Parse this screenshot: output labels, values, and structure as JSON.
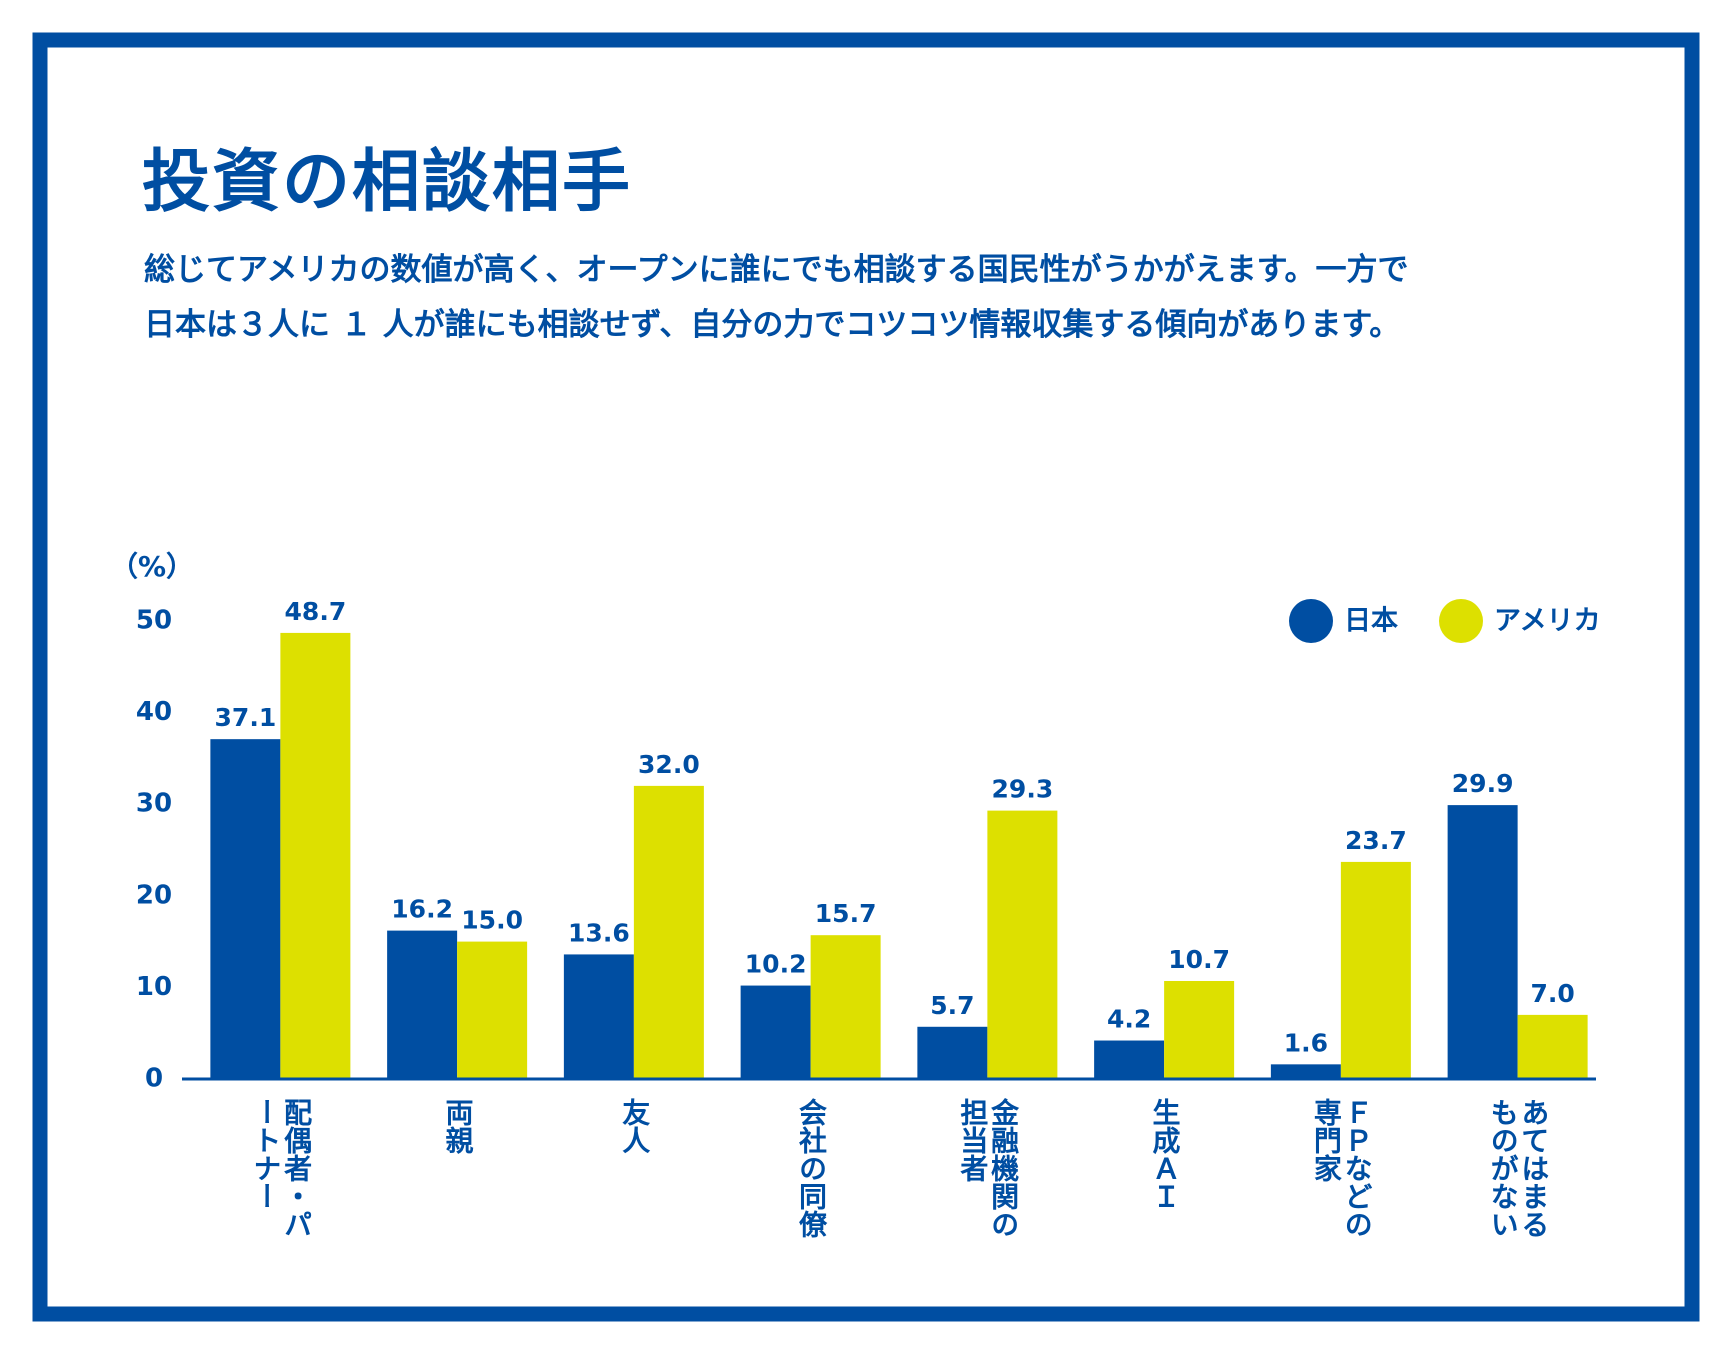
{
  "chart_data": {
    "type": "bar",
    "title": "投資の相談相手",
    "subtitle": [
      "総じてアメリカの数値が高く、オープンに誰にでも相談する国民性がうかがえます。一方で",
      "日本は３人に １ 人が誰にも相談せず、自分の力でコツコツ情報収集する傾向があります。"
    ],
    "y_label": "（%）",
    "categories": [
      "配偶者・パートナー",
      "両親",
      "友人",
      "会社の同僚",
      "金融機関の担当者",
      "生成ＡＩ",
      "ＦＰなどの専門家",
      "あてはまるものがない"
    ],
    "series": [
      {
        "name": "日本",
        "color": "#004ea2",
        "values": [
          37.1,
          16.2,
          13.6,
          10.2,
          5.7,
          4.2,
          1.6,
          29.9
        ],
        "value_labels": [
          "37.1",
          "16.2",
          "13.6",
          "10.2",
          "5.7",
          "4.2",
          "1.6",
          "29.9"
        ]
      },
      {
        "name": "アメリカ",
        "color": "#dde000",
        "values": [
          48.7,
          15.0,
          32.0,
          15.7,
          29.3,
          10.7,
          23.7,
          7.0
        ],
        "value_labels": [
          "48.7",
          "15.0",
          "32.0",
          "15.7",
          "29.3",
          "10.7",
          "23.7",
          "7.0"
        ]
      }
    ],
    "ylim": [
      0,
      50
    ],
    "yticks": [
      0,
      10,
      20,
      30,
      40,
      50
    ],
    "grid": false,
    "legend": "top-right"
  }
}
